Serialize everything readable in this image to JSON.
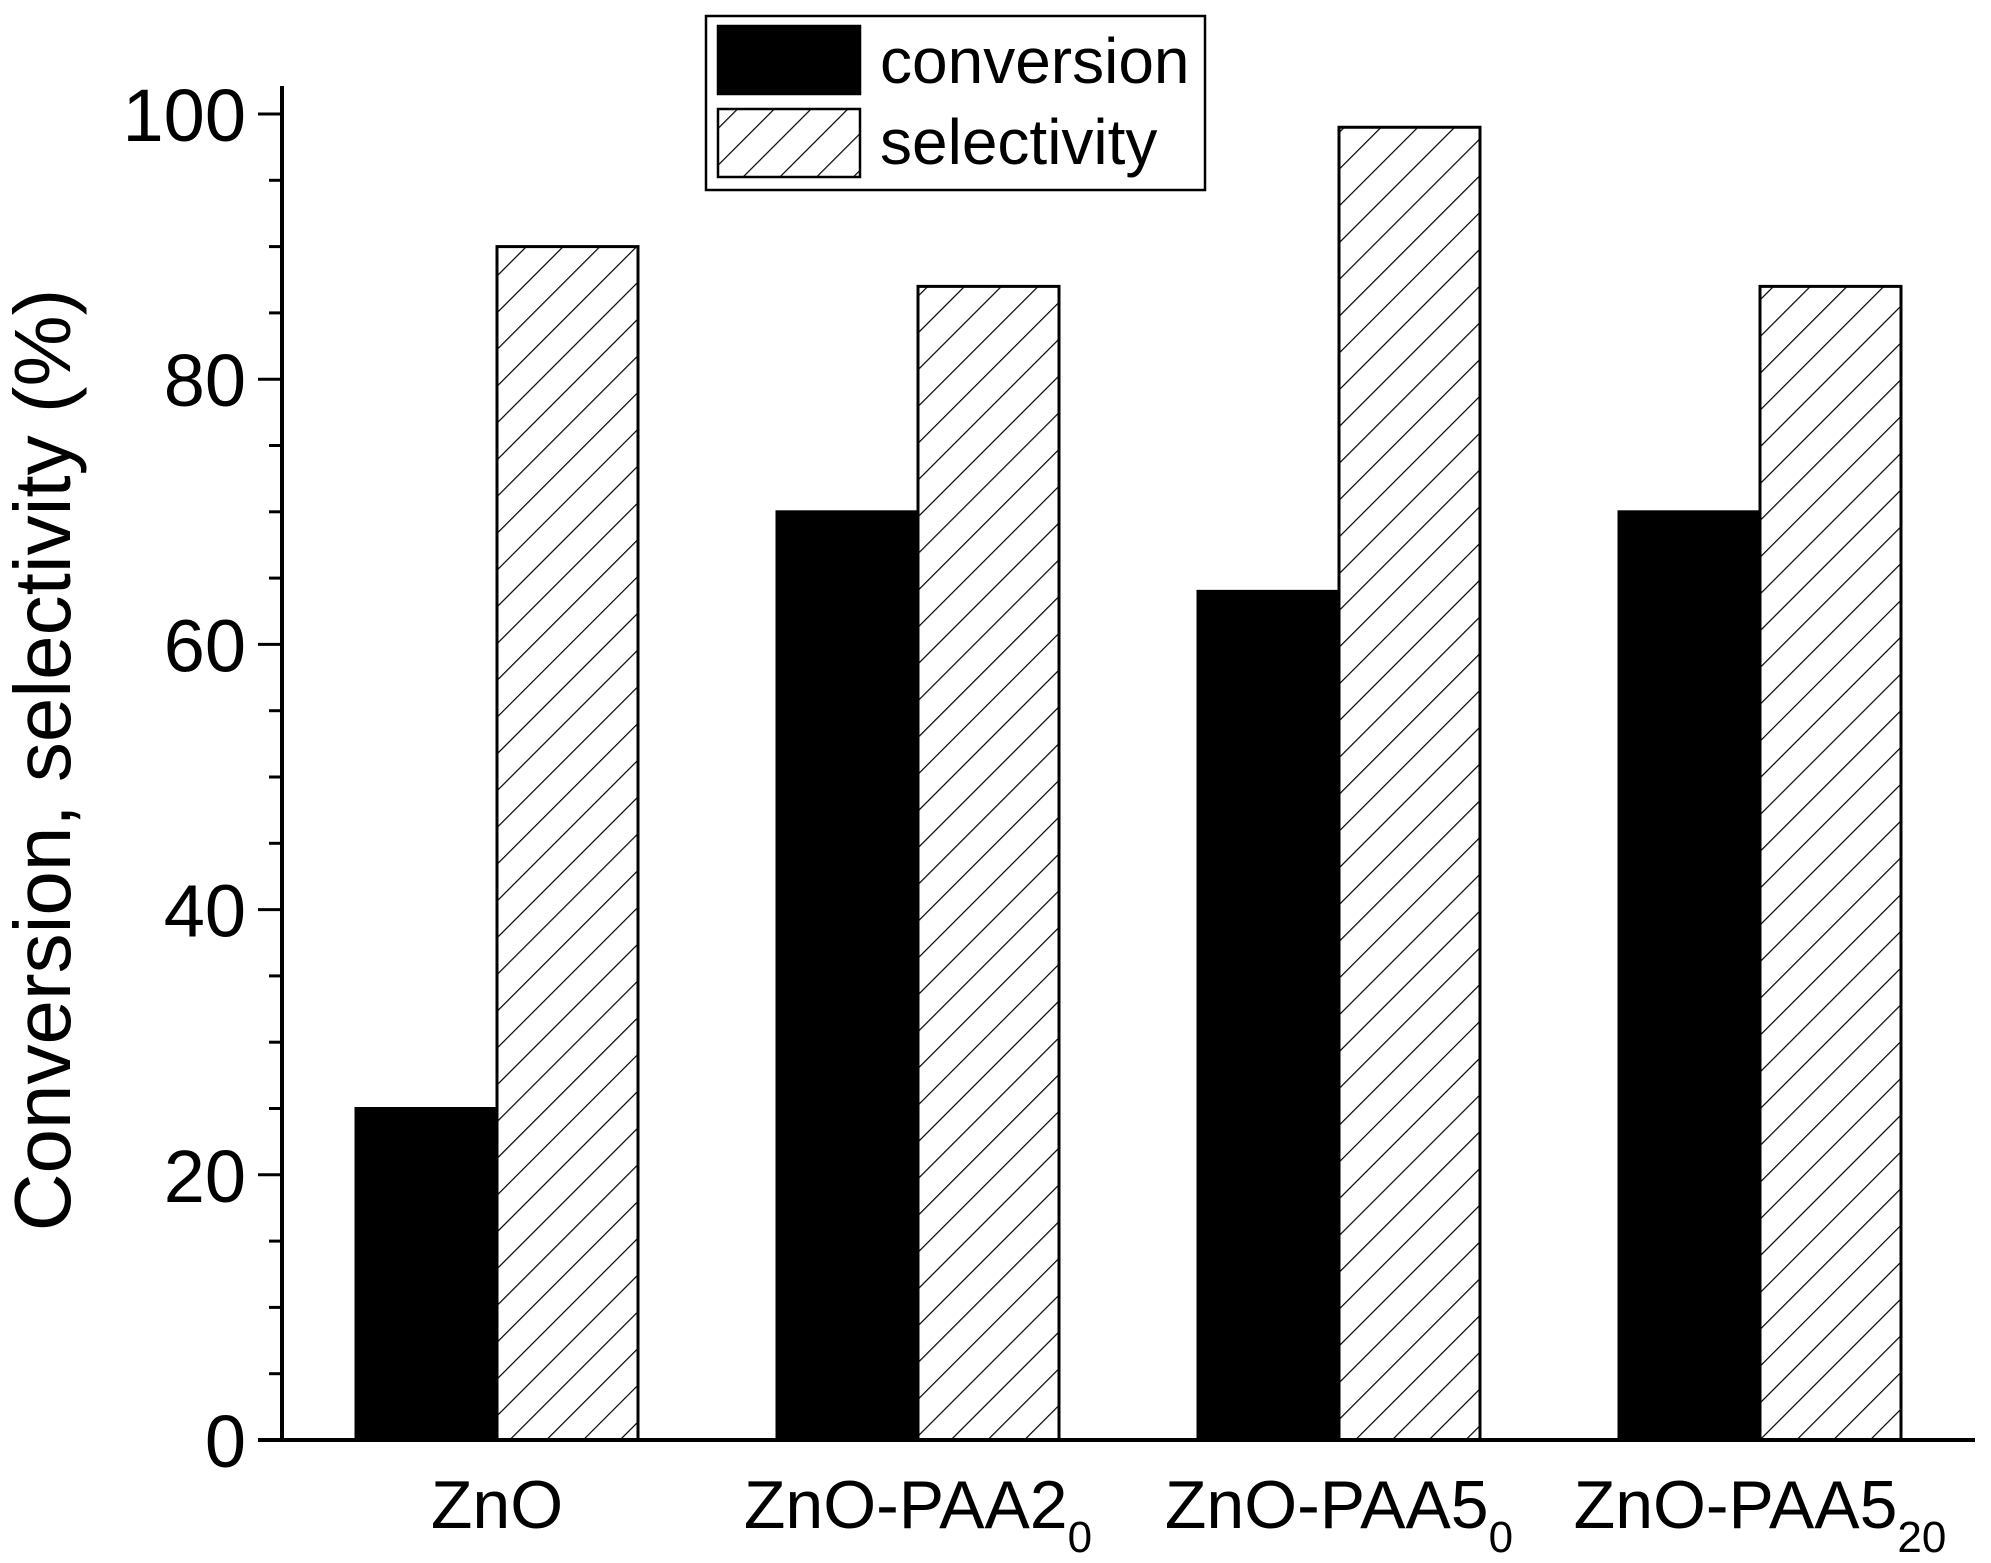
{
  "chart_data": {
    "type": "bar",
    "categories": [
      {
        "main": "ZnO",
        "sub": ""
      },
      {
        "main": "ZnO-PAA2",
        "sub": "0"
      },
      {
        "main": "ZnO-PAA5",
        "sub": "0"
      },
      {
        "main": "ZnO-PAA5",
        "sub": "20"
      }
    ],
    "series": [
      {
        "name": "conversion",
        "fill": "solid",
        "color": "#000000",
        "values": [
          25,
          70,
          64,
          70
        ]
      },
      {
        "name": "selectivity",
        "fill": "hatched",
        "color": "#000000",
        "values": [
          90,
          87,
          99,
          87
        ]
      }
    ],
    "xlabel": "",
    "ylabel": "Conversion, selectivity (%)",
    "ylim": [
      0,
      100
    ],
    "yticks": [
      0,
      20,
      40,
      60,
      80,
      100
    ],
    "minor_step": 5,
    "grid": false,
    "legend_position": "top-center"
  }
}
